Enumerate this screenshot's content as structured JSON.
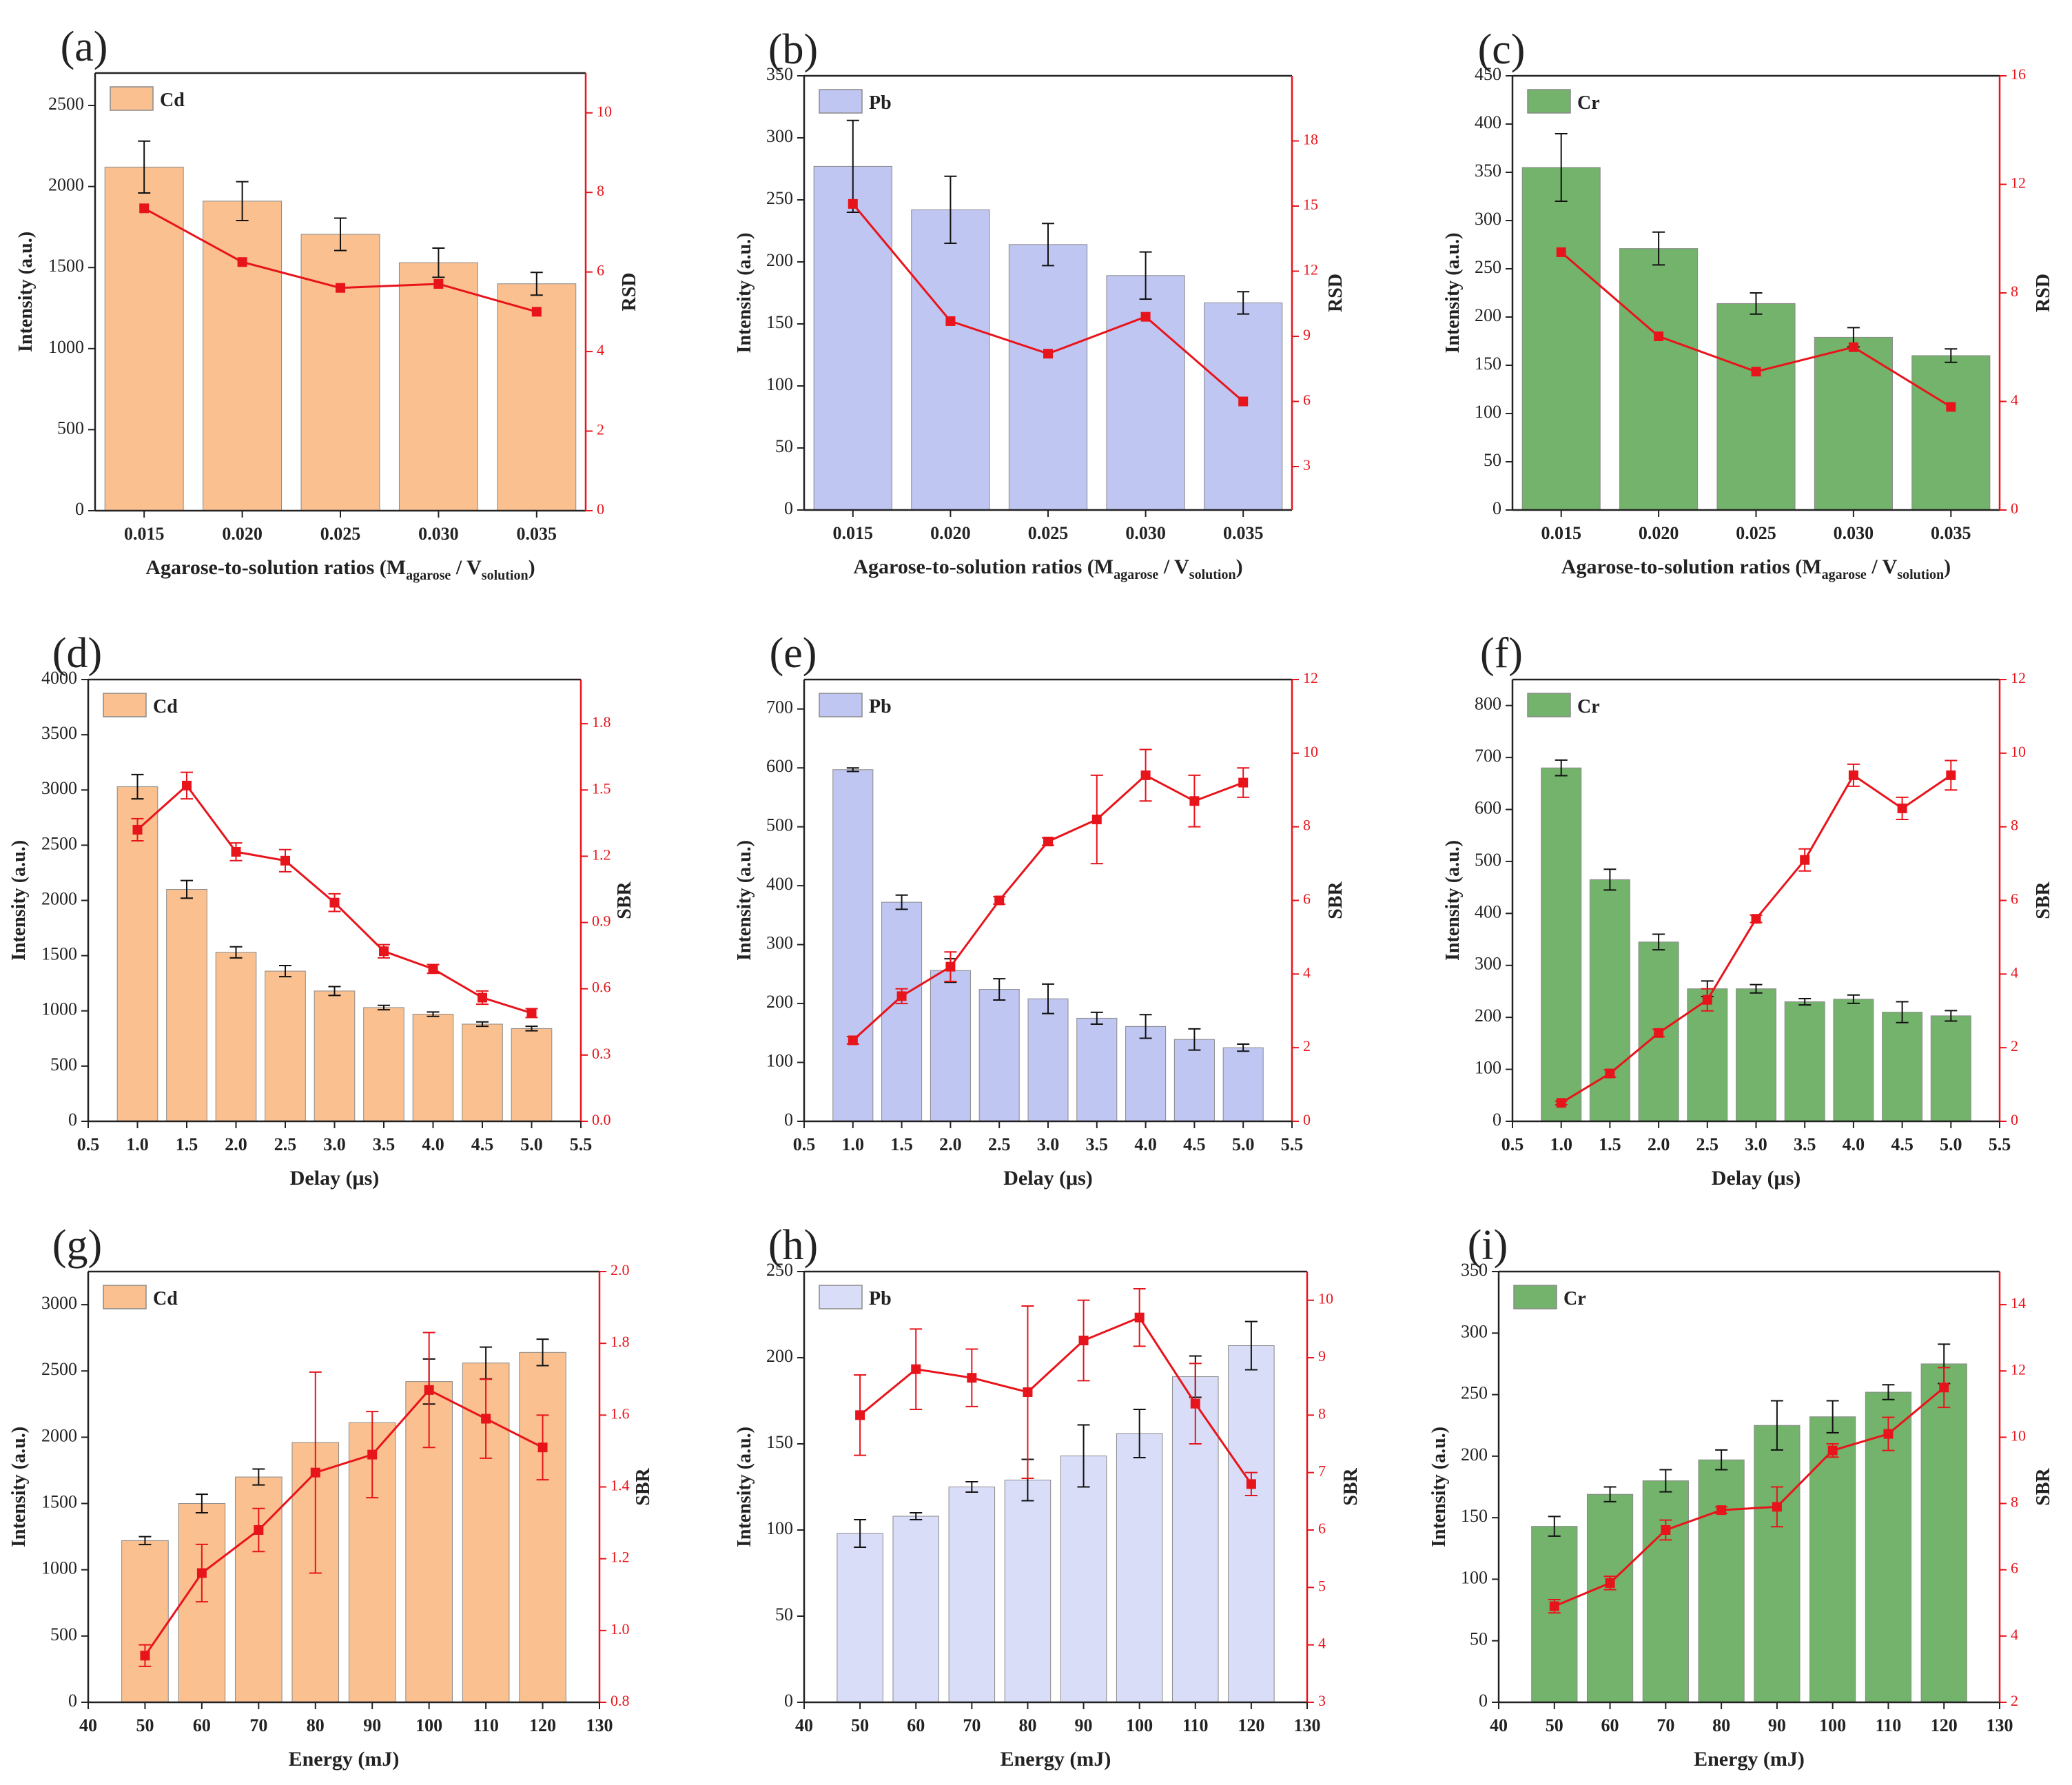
{
  "figure": {
    "colors": {
      "cd": "#FAC08F",
      "pb": "#C0C6F2",
      "pb_light": "#D9DDF7",
      "cr": "#73B36B",
      "line": "#E8141B",
      "axis": "#222222",
      "right_axis": "#E8141B"
    }
  },
  "chart_data": [
    {
      "panel": "(a)",
      "type": "bar",
      "element": "Cd",
      "color_key": "cd",
      "categories": [
        "0.015",
        "0.020",
        "0.025",
        "0.030",
        "0.035"
      ],
      "series": [
        {
          "name": "Intensity",
          "values": [
            2120,
            1910,
            1705,
            1530,
            1400
          ],
          "errors": [
            160,
            120,
            100,
            90,
            70
          ]
        },
        {
          "name": "RSD",
          "axis": "right",
          "values": [
            7.6,
            6.25,
            5.6,
            5.7,
            5.0
          ]
        }
      ],
      "ylabel": "Intensity (a.u.)",
      "y2label": "RSD",
      "xlabel": {
        "main": "Agarose-to-solution ratios (M",
        "sub1": "agarose",
        "mid": " / V",
        "sub2": "solution",
        "end": ")"
      },
      "ylim": [
        0,
        2700
      ],
      "yticks": [
        0,
        500,
        1000,
        1500,
        2000,
        2500
      ],
      "y2lim": [
        0,
        11
      ],
      "y2ticks": [
        0,
        2,
        4,
        6,
        8,
        10
      ],
      "legend": "top-left"
    },
    {
      "panel": "(b)",
      "type": "bar",
      "element": "Pb",
      "color_key": "pb",
      "categories": [
        "0.015",
        "0.020",
        "0.025",
        "0.030",
        "0.035"
      ],
      "series": [
        {
          "name": "Intensity",
          "values": [
            277,
            242,
            214,
            189,
            167
          ],
          "errors": [
            37,
            27,
            17,
            19,
            9
          ]
        },
        {
          "name": "RSD",
          "axis": "right",
          "values": [
            15.1,
            9.7,
            8.2,
            9.9,
            6.0
          ]
        }
      ],
      "ylabel": "Intensity (a.u.)",
      "y2label": "RSD",
      "xlabel": {
        "main": "Agarose-to-solution ratios (M",
        "sub1": "agarose",
        "mid": " / V",
        "sub2": "solution",
        "end": ")"
      },
      "ylim": [
        0,
        350
      ],
      "yticks": [
        0,
        50,
        100,
        150,
        200,
        250,
        300,
        350
      ],
      "y2lim": [
        1,
        21
      ],
      "y2ticks": [
        3,
        6,
        9,
        12,
        15,
        18
      ],
      "legend": "top-left"
    },
    {
      "panel": "(c)",
      "type": "bar",
      "element": "Cr",
      "color_key": "cr",
      "categories": [
        "0.015",
        "0.020",
        "0.025",
        "0.030",
        "0.035"
      ],
      "series": [
        {
          "name": "Intensity",
          "values": [
            355,
            271,
            214,
            179,
            160
          ],
          "errors": [
            35,
            17,
            11,
            10,
            7
          ]
        },
        {
          "name": "RSD",
          "axis": "right",
          "values": [
            9.5,
            6.4,
            5.1,
            6.0,
            3.8
          ]
        }
      ],
      "ylabel": "Intensity (a.u.)",
      "y2label": "RSD",
      "xlabel": {
        "main": "Agarose-to-solution ratios (M",
        "sub1": "agarose",
        "mid": " / V",
        "sub2": "solution",
        "end": ")"
      },
      "ylim": [
        0,
        450
      ],
      "yticks": [
        0,
        50,
        100,
        150,
        200,
        250,
        300,
        350,
        400,
        450
      ],
      "y2lim": [
        0,
        16
      ],
      "y2ticks": [
        0,
        4,
        8,
        12,
        16
      ],
      "legend": "top-left"
    },
    {
      "panel": "(d)",
      "type": "bar",
      "element": "Cd",
      "color_key": "cd",
      "x": [
        1.0,
        1.5,
        2.0,
        2.5,
        3.0,
        3.5,
        4.0,
        4.5,
        5.0
      ],
      "series": [
        {
          "name": "Intensity",
          "values": [
            3030,
            2100,
            1530,
            1360,
            1180,
            1030,
            970,
            880,
            840
          ],
          "errors": [
            110,
            80,
            50,
            50,
            40,
            20,
            20,
            20,
            20
          ]
        },
        {
          "name": "SBR",
          "axis": "right",
          "values": [
            1.32,
            1.52,
            1.22,
            1.18,
            0.99,
            0.77,
            0.69,
            0.56,
            0.49
          ],
          "errors": [
            0.05,
            0.06,
            0.04,
            0.05,
            0.04,
            0.03,
            0.02,
            0.03,
            0.02
          ]
        }
      ],
      "ylabel": "Intensity (a.u.)",
      "y2label": "SBR",
      "xlabel": "Delay (μs)",
      "xlim": [
        0.5,
        5.5
      ],
      "xticks": [
        "0.5",
        "1.0",
        "1.5",
        "2.0",
        "2.5",
        "3.0",
        "3.5",
        "4.0",
        "4.5",
        "5.0",
        "5.5"
      ],
      "ylim": [
        0,
        4000
      ],
      "yticks": [
        0,
        500,
        1000,
        1500,
        2000,
        2500,
        3000,
        3500,
        4000
      ],
      "y2lim": [
        0,
        2.0
      ],
      "y2ticks": [
        "0.0",
        "0.3",
        "0.6",
        "0.9",
        "1.2",
        "1.5",
        "1.8"
      ],
      "legend": "top-left"
    },
    {
      "panel": "(e)",
      "type": "bar",
      "element": "Pb",
      "color_key": "pb",
      "x": [
        1.0,
        1.5,
        2.0,
        2.5,
        3.0,
        3.5,
        4.0,
        4.5,
        5.0
      ],
      "series": [
        {
          "name": "Intensity",
          "values": [
            597,
            372,
            256,
            224,
            208,
            175,
            161,
            139,
            125
          ],
          "errors": [
            3,
            12,
            20,
            18,
            25,
            10,
            20,
            18,
            6
          ]
        },
        {
          "name": "SBR",
          "axis": "right",
          "values": [
            2.2,
            3.4,
            4.2,
            6.0,
            7.6,
            8.2,
            9.4,
            8.7,
            9.2
          ],
          "errors": [
            0.1,
            0.2,
            0.4,
            0.1,
            0.1,
            1.2,
            0.7,
            0.7,
            0.4
          ]
        }
      ],
      "ylabel": "Intensity (a.u.)",
      "y2label": "SBR",
      "xlabel": "Delay (μs)",
      "xlim": [
        0.5,
        5.5
      ],
      "xticks": [
        "0.5",
        "1.0",
        "1.5",
        "2.0",
        "2.5",
        "3.0",
        "3.5",
        "4.0",
        "4.5",
        "5.0",
        "5.5"
      ],
      "ylim": [
        0,
        750
      ],
      "yticks": [
        0,
        100,
        200,
        300,
        400,
        500,
        600,
        700
      ],
      "y2lim": [
        0,
        12
      ],
      "y2ticks": [
        0,
        2,
        4,
        6,
        8,
        10,
        12
      ],
      "legend": "top-left"
    },
    {
      "panel": "(f)",
      "type": "bar",
      "element": "Cr",
      "color_key": "cr",
      "x": [
        1.0,
        1.5,
        2.0,
        2.5,
        3.0,
        3.5,
        4.0,
        4.5,
        5.0
      ],
      "series": [
        {
          "name": "Intensity",
          "values": [
            680,
            465,
            345,
            255,
            255,
            230,
            235,
            210,
            203
          ],
          "errors": [
            15,
            20,
            15,
            15,
            8,
            6,
            8,
            20,
            10
          ]
        },
        {
          "name": "SBR",
          "axis": "right",
          "values": [
            0.5,
            1.3,
            2.4,
            3.3,
            5.5,
            7.1,
            9.4,
            8.5,
            9.4
          ],
          "errors": [
            0.05,
            0.1,
            0.1,
            0.3,
            0.1,
            0.3,
            0.3,
            0.3,
            0.4
          ]
        }
      ],
      "ylabel": "Intensity (a.u.)",
      "y2label": "SBR",
      "xlabel": "Delay (μs)",
      "xlim": [
        0.5,
        5.5
      ],
      "xticks": [
        "0.5",
        "1.0",
        "1.5",
        "2.0",
        "2.5",
        "3.0",
        "3.5",
        "4.0",
        "4.5",
        "5.0",
        "5.5"
      ],
      "ylim": [
        0,
        850
      ],
      "yticks": [
        0,
        100,
        200,
        300,
        400,
        500,
        600,
        700,
        800
      ],
      "y2lim": [
        0,
        12
      ],
      "y2ticks": [
        0,
        2,
        4,
        6,
        8,
        10,
        12
      ],
      "legend": "top-left"
    },
    {
      "panel": "(g)",
      "type": "bar",
      "element": "Cd",
      "color_key": "cd",
      "x": [
        50,
        60,
        70,
        80,
        90,
        100,
        110,
        120
      ],
      "series": [
        {
          "name": "Intensity",
          "values": [
            1220,
            1500,
            1700,
            1960,
            2110,
            2420,
            2560,
            2640
          ],
          "errors": [
            30,
            70,
            60,
            0,
            0,
            170,
            120,
            100
          ]
        },
        {
          "name": "SBR",
          "axis": "right",
          "values": [
            0.93,
            1.16,
            1.28,
            1.44,
            1.49,
            1.67,
            1.59,
            1.51
          ],
          "errors": [
            0.03,
            0.08,
            0.06,
            0.28,
            0.12,
            0.16,
            0.11,
            0.09
          ]
        }
      ],
      "ylabel": "Intensity (a.u.)",
      "y2label": "SBR",
      "xlabel": "Energy (mJ)",
      "xlim": [
        40,
        130
      ],
      "xticks": [
        "40",
        "50",
        "60",
        "70",
        "80",
        "90",
        "100",
        "110",
        "120",
        "130"
      ],
      "ylim": [
        0,
        3250
      ],
      "yticks": [
        0,
        500,
        1000,
        1500,
        2000,
        2500,
        3000
      ],
      "y2lim": [
        0.8,
        2.0
      ],
      "y2ticks": [
        "0.8",
        "1.0",
        "1.2",
        "1.4",
        "1.6",
        "1.8",
        "2.0"
      ],
      "legend": "top-left"
    },
    {
      "panel": "(h)",
      "type": "bar",
      "element": "Pb",
      "color_key": "pb_light",
      "x": [
        50,
        60,
        70,
        80,
        90,
        100,
        110,
        120
      ],
      "series": [
        {
          "name": "Intensity",
          "values": [
            98,
            108,
            125,
            129,
            143,
            156,
            189,
            207
          ],
          "errors": [
            8,
            2,
            3,
            12,
            18,
            14,
            12,
            14
          ]
        },
        {
          "name": "SBR",
          "axis": "right",
          "values": [
            8.0,
            8.8,
            8.65,
            8.4,
            9.3,
            9.7,
            8.2,
            6.8
          ],
          "errors": [
            0.7,
            0.7,
            0.5,
            1.5,
            0.7,
            0.5,
            0.7,
            0.2
          ]
        }
      ],
      "ylabel": "Intensity (a.u.)",
      "y2label": "SBR",
      "xlabel": "Energy (mJ)",
      "xlim": [
        40,
        130
      ],
      "xticks": [
        "40",
        "50",
        "60",
        "70",
        "80",
        "90",
        "100",
        "110",
        "120",
        "130"
      ],
      "ylim": [
        0,
        250
      ],
      "yticks": [
        0,
        50,
        100,
        150,
        200,
        250
      ],
      "y2lim": [
        3,
        10.5
      ],
      "y2ticks": [
        3,
        4,
        5,
        6,
        7,
        8,
        9,
        10
      ],
      "legend": "top-left"
    },
    {
      "panel": "(i)",
      "type": "bar",
      "element": "Cr",
      "color_key": "cr",
      "x": [
        50,
        60,
        70,
        80,
        90,
        100,
        110,
        120
      ],
      "series": [
        {
          "name": "Intensity",
          "values": [
            143,
            169,
            180,
            197,
            225,
            232,
            252,
            275
          ],
          "errors": [
            8,
            6,
            9,
            8,
            20,
            13,
            6,
            16
          ]
        },
        {
          "name": "SBR",
          "axis": "right",
          "values": [
            4.9,
            5.6,
            7.2,
            7.8,
            7.9,
            9.6,
            10.1,
            11.5
          ],
          "errors": [
            0.2,
            0.2,
            0.3,
            0.1,
            0.6,
            0.2,
            0.5,
            0.6
          ]
        }
      ],
      "ylabel": "Intensity (a.u.)",
      "y2label": "SBR",
      "xlabel": "Energy (mJ)",
      "xlim": [
        40,
        130
      ],
      "xticks": [
        "40",
        "50",
        "60",
        "70",
        "80",
        "90",
        "100",
        "110",
        "120",
        "130"
      ],
      "ylim": [
        0,
        350
      ],
      "yticks": [
        0,
        50,
        100,
        150,
        200,
        250,
        300,
        350
      ],
      "y2lim": [
        2,
        15
      ],
      "y2ticks": [
        2,
        4,
        6,
        8,
        10,
        12,
        14
      ],
      "legend": "top-left"
    }
  ]
}
